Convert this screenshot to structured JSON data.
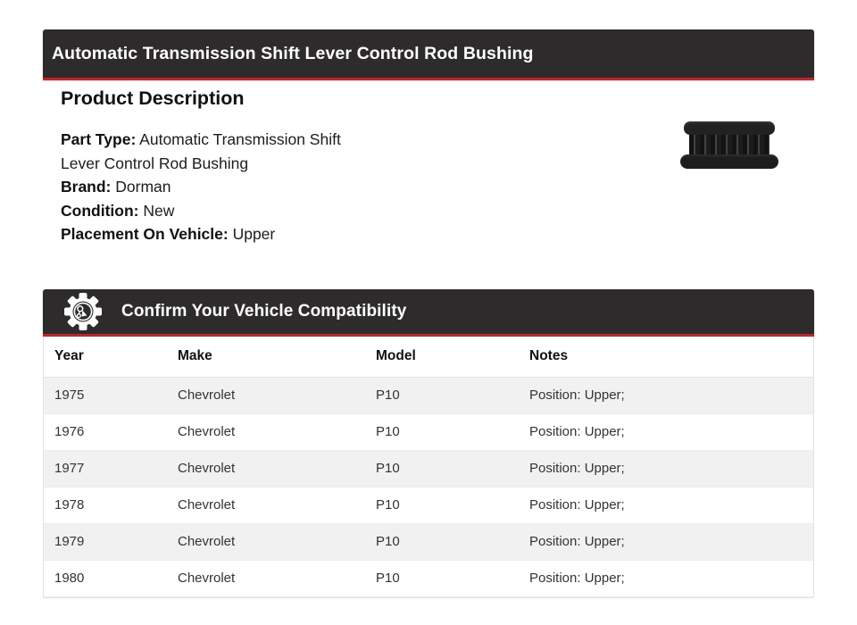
{
  "colors": {
    "header_bg": "#2e2b2c",
    "accent_red": "#c92128",
    "row_alt": "#f1f1f1",
    "table_border": "#e3e3e3"
  },
  "product_header": {
    "title": "Automatic Transmission Shift Lever Control Rod Bushing"
  },
  "description": {
    "heading": "Product Description",
    "fields": [
      {
        "label": "Part Type:",
        "value": "Automatic Transmission Shift Lever Control Rod Bushing"
      },
      {
        "label": "Brand:",
        "value": "Dorman"
      },
      {
        "label": "Condition:",
        "value": "New"
      },
      {
        "label": "Placement On Vehicle:",
        "value": "Upper"
      }
    ],
    "photo": "black rubber control rod bushing with ribbed center and two flanges"
  },
  "compatibility": {
    "heading": "Confirm Your Vehicle Compatibility",
    "icon": "gear-engine-icon",
    "table": {
      "columns": [
        "Year",
        "Make",
        "Model",
        "Notes"
      ],
      "rows": [
        [
          "1975",
          "Chevrolet",
          "P10",
          "Position: Upper;"
        ],
        [
          "1976",
          "Chevrolet",
          "P10",
          "Position: Upper;"
        ],
        [
          "1977",
          "Chevrolet",
          "P10",
          "Position: Upper;"
        ],
        [
          "1978",
          "Chevrolet",
          "P10",
          "Position: Upper;"
        ],
        [
          "1979",
          "Chevrolet",
          "P10",
          "Position: Upper;"
        ],
        [
          "1980",
          "Chevrolet",
          "P10",
          "Position: Upper;"
        ]
      ]
    }
  }
}
